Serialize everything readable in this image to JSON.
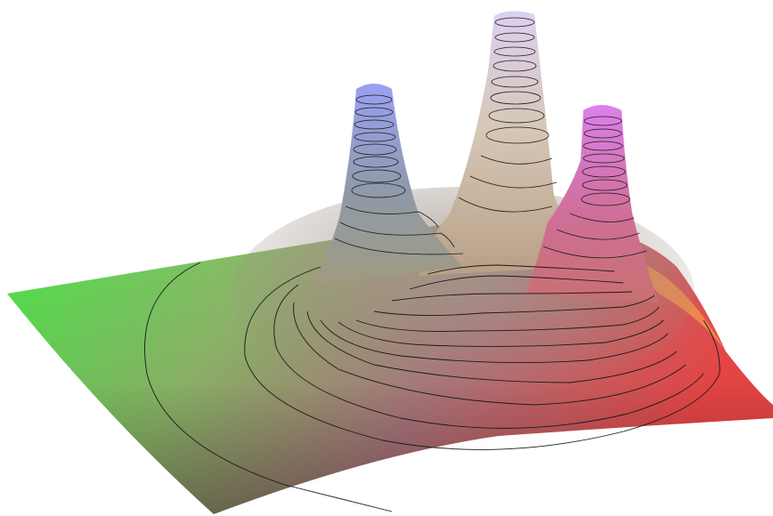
{
  "figure": {
    "kind": "3d-surface-plot",
    "description_visible_text": "",
    "peaks": [
      {
        "name": "left-peak",
        "color": "#9a9ef0"
      },
      {
        "name": "middle-peak",
        "color": "#d8cdf0"
      },
      {
        "name": "right-peak",
        "color": "#d97fe6"
      }
    ],
    "base_colors": {
      "left_edge": "#46e64a",
      "back_edge": "#9ed860",
      "front_corner": "#4f5a4f",
      "right_corner": "#ec4a4a",
      "right_back_edge": "#f0a050"
    },
    "contour_color": "#1a1a1a"
  }
}
